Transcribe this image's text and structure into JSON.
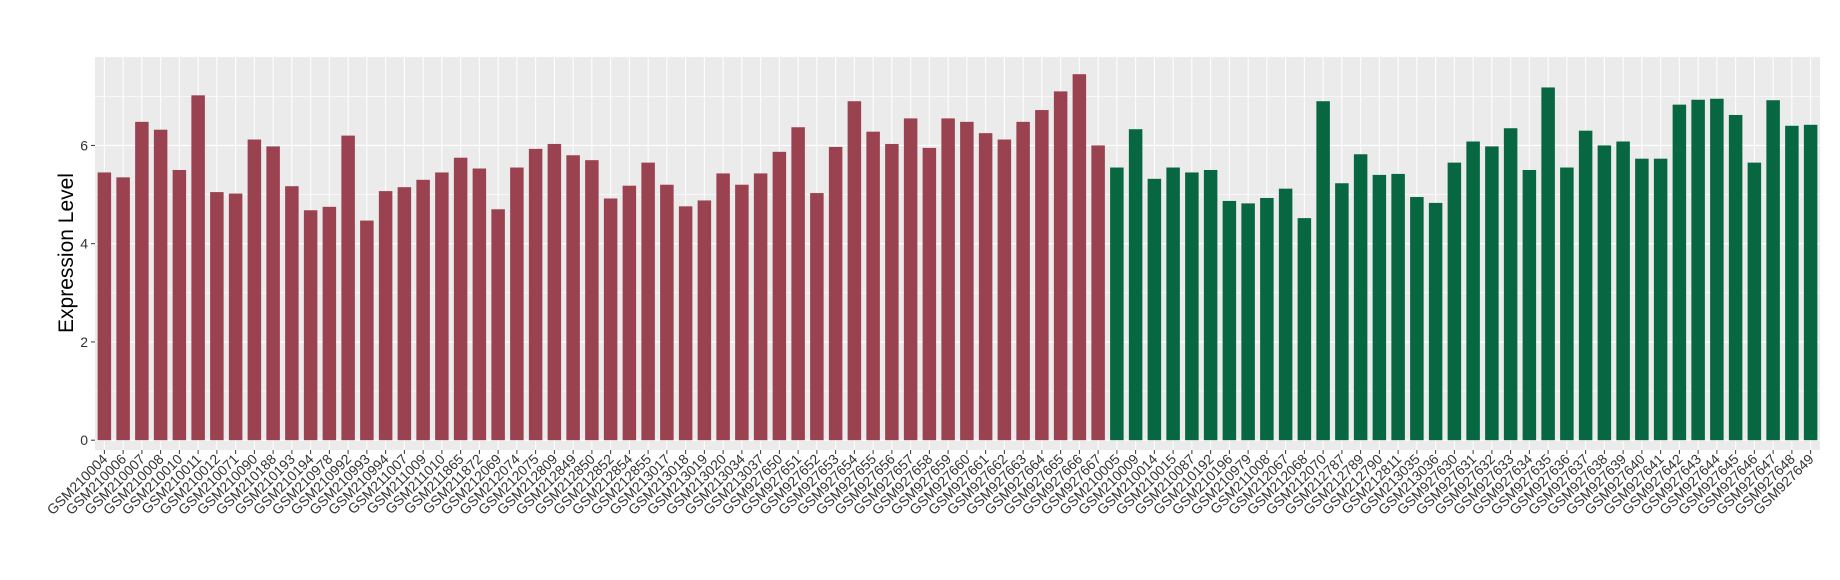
{
  "chart_data": {
    "type": "bar",
    "title": "",
    "xlabel": "",
    "ylabel": "Expression Level",
    "ylim": [
      -0.2,
      7.8
    ],
    "yticks": [
      0,
      2,
      4,
      6
    ],
    "grid": true,
    "legend": "none",
    "colors": {
      "group1": "#9B4250",
      "group2": "#076741",
      "panel": "#EBEBEB",
      "grid": "#FFFFFF"
    },
    "categories": [
      "GSM210004",
      "GSM210006",
      "GSM210007",
      "GSM210008",
      "GSM210010",
      "GSM210011",
      "GSM210012",
      "GSM210071",
      "GSM210090",
      "GSM210188",
      "GSM210193",
      "GSM210194",
      "GSM210978",
      "GSM210992",
      "GSM210993",
      "GSM210994",
      "GSM211007",
      "GSM211009",
      "GSM211010",
      "GSM211865",
      "GSM211872",
      "GSM212069",
      "GSM212074",
      "GSM212075",
      "GSM212809",
      "GSM212849",
      "GSM212850",
      "GSM212852",
      "GSM212854",
      "GSM212855",
      "GSM213017",
      "GSM213018",
      "GSM213019",
      "GSM213020",
      "GSM213034",
      "GSM213037",
      "GSM927650",
      "GSM927651",
      "GSM927652",
      "GSM927653",
      "GSM927654",
      "GSM927655",
      "GSM927656",
      "GSM927657",
      "GSM927658",
      "GSM927659",
      "GSM927660",
      "GSM927661",
      "GSM927662",
      "GSM927663",
      "GSM927664",
      "GSM927665",
      "GSM927666",
      "GSM927667",
      "GSM210005",
      "GSM210009",
      "GSM210014",
      "GSM210015",
      "GSM210087",
      "GSM210192",
      "GSM210196",
      "GSM210979",
      "GSM211008",
      "GSM212067",
      "GSM212068",
      "GSM212070",
      "GSM212787",
      "GSM212789",
      "GSM212790",
      "GSM212811",
      "GSM213035",
      "GSM213036",
      "GSM927630",
      "GSM927631",
      "GSM927632",
      "GSM927633",
      "GSM927634",
      "GSM927635",
      "GSM927636",
      "GSM927637",
      "GSM927638",
      "GSM927639",
      "GSM927640",
      "GSM927641",
      "GSM927642",
      "GSM927643",
      "GSM927644",
      "GSM927645",
      "GSM927646",
      "GSM927647",
      "GSM927648",
      "GSM927649"
    ],
    "values": [
      5.45,
      5.35,
      6.48,
      6.32,
      5.5,
      7.02,
      5.05,
      5.02,
      6.12,
      5.98,
      5.17,
      4.68,
      4.75,
      6.2,
      4.47,
      5.07,
      5.15,
      5.3,
      5.45,
      5.75,
      5.53,
      4.7,
      5.55,
      5.93,
      6.03,
      5.8,
      5.7,
      4.92,
      5.18,
      5.65,
      5.2,
      4.76,
      4.88,
      5.43,
      5.2,
      5.43,
      5.87,
      6.37,
      5.03,
      5.97,
      6.9,
      6.28,
      6.03,
      6.55,
      5.95,
      6.55,
      6.48,
      6.25,
      6.12,
      6.48,
      6.72,
      7.1,
      7.45,
      6.0,
      5.55,
      6.33,
      5.32,
      5.55,
      5.45,
      5.5,
      4.87,
      4.82,
      4.93,
      5.12,
      4.52,
      6.9,
      5.23,
      5.82,
      5.4,
      5.42,
      4.95,
      4.83,
      5.65,
      6.08,
      5.98,
      6.35,
      5.5,
      7.18,
      5.55,
      6.3,
      6.0,
      6.08,
      5.73,
      5.73,
      6.83,
      6.93,
      6.95,
      6.62,
      5.65,
      6.92,
      6.4,
      6.42
    ],
    "group_sizes": [
      54,
      38
    ]
  }
}
